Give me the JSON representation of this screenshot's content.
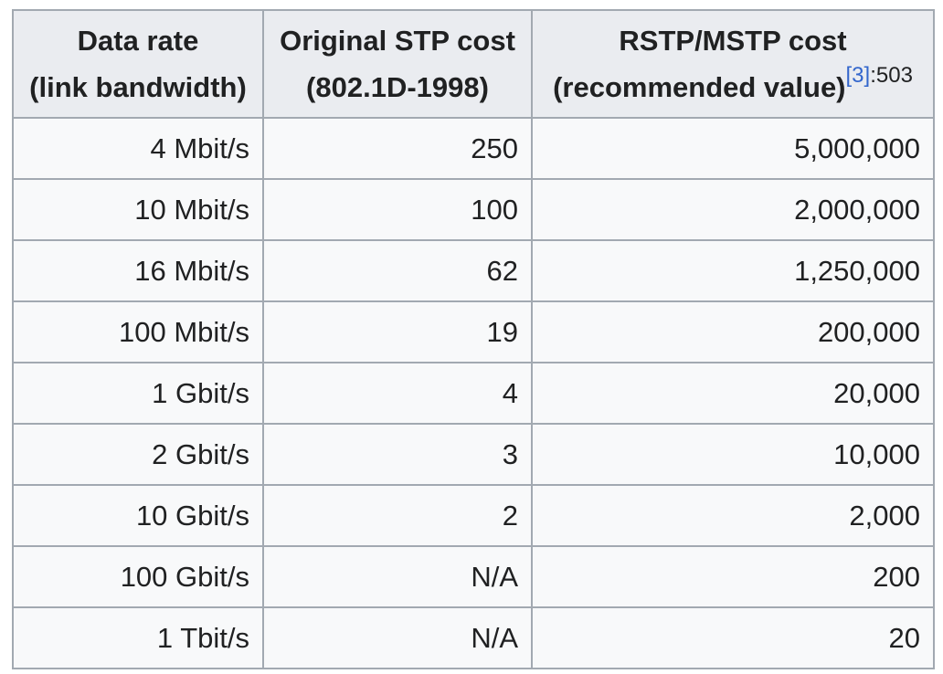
{
  "table": {
    "headers": [
      {
        "line1": "Data rate",
        "line2": "(link bandwidth)"
      },
      {
        "line1": "Original STP cost",
        "line2": "(802.1D-1998)"
      },
      {
        "line1": "RSTP/MSTP cost",
        "line2": "(recommended value)",
        "ref": "[3]",
        "ref_page": ":503"
      }
    ],
    "rows": [
      [
        "4 Mbit/s",
        "250",
        "5,000,000"
      ],
      [
        "10 Mbit/s",
        "100",
        "2,000,000"
      ],
      [
        "16 Mbit/s",
        "62",
        "1,250,000"
      ],
      [
        "100 Mbit/s",
        "19",
        "200,000"
      ],
      [
        "1 Gbit/s",
        "4",
        "20,000"
      ],
      [
        "2 Gbit/s",
        "3",
        "10,000"
      ],
      [
        "10 Gbit/s",
        "2",
        "2,000"
      ],
      [
        "100 Gbit/s",
        "N/A",
        "200"
      ],
      [
        "1 Tbit/s",
        "N/A",
        "20"
      ]
    ]
  },
  "colors": {
    "header_bg": "#eaecf0",
    "cell_bg": "#f8f9fa",
    "border": "#a2a9b1",
    "link": "#3366cc",
    "text": "#202122"
  }
}
